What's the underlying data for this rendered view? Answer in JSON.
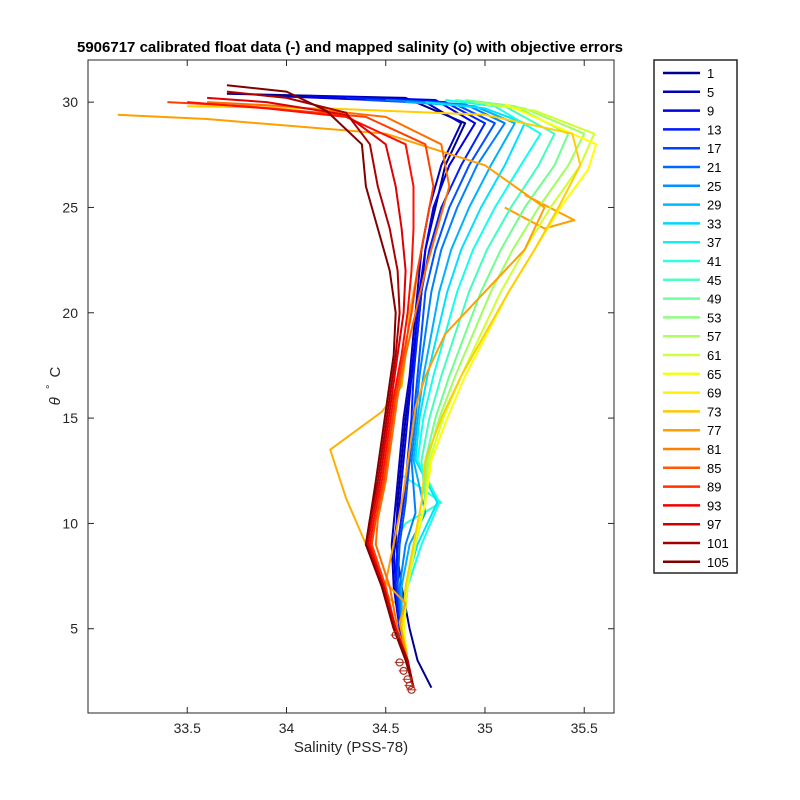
{
  "chart_data": {
    "type": "line",
    "title": "5906717 calibrated float data (-) and mapped salinity (o) with objective errors",
    "xlabel": "Salinity (PSS-78)",
    "ylabel_symbol": "θ",
    "ylabel_degree": "°",
    "ylabel_unit": "C",
    "xlim": [
      33.0,
      35.65
    ],
    "ylim": [
      1.0,
      32.0
    ],
    "xticks": [
      33.5,
      34,
      34.5,
      35,
      35.5
    ],
    "xtick_labels": [
      "33.5",
      "34",
      "34.5",
      "35",
      "35.5"
    ],
    "yticks": [
      5,
      10,
      15,
      20,
      25,
      30
    ],
    "ytick_labels": [
      "5",
      "10",
      "15",
      "20",
      "25",
      "30"
    ],
    "grid": false,
    "legend_position": "outside-right",
    "colormap": "jet",
    "series": [
      {
        "name": "1",
        "color": "#00008F",
        "x": [
          34.73,
          34.66,
          34.62,
          34.58,
          34.55,
          34.56,
          34.58,
          34.6,
          34.63,
          34.66,
          34.68,
          34.7,
          34.75,
          34.8,
          34.9,
          34.6,
          33.7
        ],
        "y": [
          2.2,
          3.5,
          5.0,
          7.0,
          9.0,
          11.0,
          13.0,
          15.0,
          17.0,
          19.0,
          21.0,
          23.0,
          25.0,
          27.0,
          29.0,
          30.2,
          30.4
        ]
      },
      {
        "name": "5",
        "color": "#0000BF",
        "x": [
          34.64,
          34.61,
          34.57,
          34.54,
          34.53,
          34.55,
          34.57,
          34.59,
          34.62,
          34.64,
          34.66,
          34.68,
          34.72,
          34.78,
          34.88,
          34.7,
          33.9
        ],
        "y": [
          2.2,
          3.5,
          5.0,
          7.0,
          9.0,
          11.0,
          13.0,
          15.0,
          17.0,
          19.0,
          21.0,
          23.0,
          25.0,
          27.0,
          29.0,
          30.0,
          30.3
        ]
      },
      {
        "name": "9",
        "color": "#0000EF",
        "x": [
          34.64,
          34.61,
          34.57,
          34.55,
          34.54,
          34.57,
          34.59,
          34.61,
          34.63,
          34.65,
          34.67,
          34.7,
          34.74,
          34.82,
          34.95,
          34.75,
          34.1
        ],
        "y": [
          2.2,
          3.5,
          5.0,
          7.0,
          9.0,
          11.0,
          13.0,
          15.0,
          17.0,
          19.0,
          21.0,
          23.0,
          25.0,
          27.0,
          29.0,
          30.1,
          30.3
        ]
      },
      {
        "name": "13",
        "color": "#0020FF",
        "x": [
          34.64,
          34.61,
          34.57,
          34.55,
          34.56,
          34.59,
          34.61,
          34.63,
          34.64,
          34.66,
          34.68,
          34.72,
          34.78,
          34.88,
          35.0,
          34.8,
          34.3
        ],
        "y": [
          2.2,
          3.5,
          5.0,
          7.0,
          9.0,
          11.0,
          13.0,
          15.0,
          17.0,
          19.0,
          21.0,
          23.0,
          25.0,
          27.0,
          29.0,
          30.0,
          30.2
        ]
      },
      {
        "name": "17",
        "color": "#0050FF",
        "x": [
          34.64,
          34.61,
          34.58,
          34.56,
          34.57,
          34.6,
          34.62,
          34.64,
          34.66,
          34.68,
          34.7,
          34.75,
          34.82,
          34.92,
          35.05,
          34.85,
          34.4
        ],
        "y": [
          2.2,
          3.5,
          5.0,
          7.0,
          9.0,
          11.0,
          13.0,
          15.0,
          17.0,
          19.0,
          21.0,
          23.0,
          25.0,
          27.0,
          29.0,
          29.9,
          30.1
        ]
      },
      {
        "name": "21",
        "color": "#0080FF",
        "x": [
          34.64,
          34.61,
          34.58,
          34.57,
          34.6,
          34.65,
          34.63,
          34.65,
          34.67,
          34.7,
          34.73,
          34.78,
          34.86,
          34.96,
          35.1,
          34.9,
          34.5
        ],
        "y": [
          2.2,
          3.5,
          5.0,
          7.0,
          9.0,
          10.5,
          13.0,
          15.0,
          17.0,
          19.0,
          21.0,
          23.0,
          25.0,
          27.0,
          29.0,
          29.9,
          30.1
        ]
      },
      {
        "name": "25",
        "color": "#00B0FF",
        "x": [
          34.64,
          34.61,
          34.58,
          34.58,
          34.62,
          34.7,
          34.64,
          34.66,
          34.69,
          34.73,
          34.77,
          34.83,
          34.92,
          35.03,
          35.15,
          34.95,
          34.6
        ],
        "y": [
          2.2,
          3.5,
          5.0,
          7.0,
          9.0,
          10.5,
          13.0,
          15.0,
          17.0,
          19.0,
          21.0,
          23.0,
          25.0,
          27.0,
          29.0,
          29.8,
          30.0
        ]
      },
      {
        "name": "29",
        "color": "#00E0FF",
        "x": [
          34.64,
          34.61,
          34.59,
          34.6,
          34.66,
          34.76,
          34.65,
          34.67,
          34.71,
          34.76,
          34.81,
          34.88,
          34.98,
          35.1,
          35.2,
          35.0,
          34.7
        ],
        "y": [
          2.2,
          3.5,
          5.0,
          7.0,
          9.0,
          11.0,
          13.0,
          15.0,
          17.0,
          19.0,
          21.0,
          23.0,
          25.0,
          27.0,
          29.0,
          29.7,
          30.0
        ]
      },
      {
        "name": "33",
        "color": "#10FFEF",
        "x": [
          34.64,
          34.61,
          34.59,
          34.61,
          34.68,
          34.77,
          34.66,
          34.69,
          34.74,
          34.8,
          34.86,
          34.94,
          35.05,
          35.18,
          35.28,
          35.05,
          34.8
        ],
        "y": [
          2.2,
          3.5,
          5.0,
          7.0,
          9.0,
          11.0,
          13.0,
          15.0,
          17.0,
          19.0,
          21.0,
          23.0,
          25.0,
          27.0,
          28.5,
          29.8,
          30.1
        ]
      },
      {
        "name": "37",
        "color": "#40FFBF",
        "x": [
          34.64,
          34.61,
          34.59,
          34.61,
          34.65,
          34.7,
          34.68,
          34.72,
          34.78,
          34.85,
          34.92,
          35.01,
          35.13,
          35.27,
          35.35,
          35.1,
          34.85
        ],
        "y": [
          2.2,
          3.5,
          5.0,
          7.0,
          9.0,
          11.0,
          13.0,
          15.0,
          17.0,
          19.0,
          21.0,
          23.0,
          25.0,
          27.0,
          28.5,
          29.8,
          30.1
        ]
      },
      {
        "name": "41",
        "color": "#70FF8F",
        "x": [
          34.64,
          34.61,
          34.59,
          34.61,
          34.65,
          34.7,
          34.7,
          34.75,
          34.82,
          34.9,
          34.98,
          35.08,
          35.2,
          35.35,
          35.42,
          35.15,
          34.9
        ],
        "y": [
          2.2,
          3.5,
          5.0,
          7.0,
          9.0,
          11.0,
          13.0,
          15.0,
          17.0,
          19.0,
          21.0,
          23.0,
          25.0,
          27.0,
          28.5,
          29.8,
          30.1
        ]
      },
      {
        "name": "45",
        "color": "#A0FF5F",
        "x": [
          34.64,
          34.61,
          34.59,
          34.61,
          34.65,
          34.7,
          34.71,
          34.77,
          34.85,
          34.94,
          35.03,
          35.14,
          35.27,
          35.42,
          35.5,
          35.2,
          34.95
        ],
        "y": [
          2.2,
          3.5,
          5.0,
          7.0,
          9.0,
          11.0,
          13.0,
          15.0,
          17.0,
          19.0,
          21.0,
          23.0,
          25.0,
          27.0,
          28.5,
          29.7,
          30.0
        ]
      },
      {
        "name": "49",
        "color": "#D0FF2F",
        "x": [
          34.64,
          34.61,
          34.59,
          34.61,
          34.65,
          34.7,
          34.72,
          34.79,
          34.88,
          34.98,
          35.08,
          35.2,
          35.33,
          35.48,
          35.55,
          35.25,
          35.0
        ],
        "y": [
          2.2,
          3.5,
          5.0,
          7.0,
          9.0,
          11.0,
          13.0,
          15.0,
          17.0,
          19.0,
          21.0,
          23.0,
          25.0,
          27.0,
          28.5,
          29.6,
          29.9
        ]
      },
      {
        "name": "53",
        "color": "#FFFF00",
        "x": [
          34.64,
          34.61,
          34.59,
          34.6,
          34.64,
          34.7,
          34.73,
          34.81,
          34.9,
          35.01,
          35.12,
          35.25,
          35.38,
          35.52,
          35.56,
          35.2,
          35.1
        ],
        "y": [
          2.2,
          3.5,
          5.0,
          7.0,
          9.0,
          11.0,
          13.0,
          15.0,
          17.0,
          19.0,
          21.0,
          23.0,
          25.0,
          26.8,
          28.0,
          29.5,
          29.9
        ]
      },
      {
        "name": "57",
        "color": "#FFCF00",
        "x": [
          34.64,
          34.61,
          34.58,
          34.6,
          34.64,
          34.68,
          34.7,
          34.78,
          34.88,
          35.0,
          35.12,
          35.25,
          35.37,
          35.48,
          35.44,
          35.0,
          34.2,
          33.5
        ],
        "y": [
          2.2,
          3.5,
          5.0,
          7.0,
          9.0,
          11.0,
          13.0,
          15.0,
          17.0,
          19.0,
          21.0,
          23.0,
          25.0,
          27.0,
          28.5,
          29.4,
          29.7,
          29.8
        ]
      },
      {
        "name": "61",
        "color": "#FF9F00",
        "x": [
          34.64,
          34.61,
          34.57,
          34.6,
          34.5,
          34.55,
          34.59,
          34.62,
          34.65,
          34.7,
          34.8,
          35.0,
          35.2,
          35.3,
          35.0,
          34.5,
          33.6,
          33.15
        ],
        "y": [
          2.2,
          3.5,
          5.3,
          6.2,
          7.2,
          9.5,
          11.5,
          13.5,
          15.5,
          17.0,
          19.0,
          21.0,
          23.0,
          25.0,
          27.0,
          28.5,
          29.2,
          29.4
        ]
      },
      {
        "name": "65",
        "color": "#FF6F00",
        "x": [
          34.64,
          34.61,
          34.56,
          34.52,
          34.45,
          34.46,
          34.5,
          34.53,
          34.56,
          34.6,
          34.65,
          34.7,
          34.76,
          34.82,
          34.78,
          34.5,
          34.0,
          33.6
        ],
        "y": [
          2.2,
          3.5,
          5.0,
          7.0,
          9.0,
          10.2,
          12.0,
          14.0,
          16.0,
          18.0,
          20.0,
          22.0,
          24.0,
          26.0,
          28.0,
          29.3,
          29.8,
          30.0
        ]
      },
      {
        "name": "69",
        "color": "#FF3F00",
        "x": [
          34.64,
          34.61,
          34.55,
          34.5,
          34.43,
          34.45,
          34.49,
          34.52,
          34.55,
          34.59,
          34.63,
          34.66,
          34.7,
          34.74,
          34.7,
          34.4,
          33.8,
          33.4
        ],
        "y": [
          2.2,
          3.5,
          5.0,
          7.0,
          9.0,
          10.2,
          12.0,
          14.0,
          16.0,
          18.0,
          20.0,
          22.0,
          24.0,
          26.0,
          28.0,
          29.3,
          29.8,
          30.0
        ]
      },
      {
        "name": "73",
        "color": "#FF0F00",
        "x": [
          34.64,
          34.61,
          34.55,
          34.49,
          34.42,
          34.44,
          34.48,
          34.51,
          34.54,
          34.58,
          34.61,
          34.63,
          34.64,
          34.64,
          34.6,
          34.3,
          33.9,
          33.5
        ],
        "y": [
          2.2,
          3.5,
          5.0,
          7.0,
          9.0,
          10.2,
          12.0,
          14.0,
          16.0,
          18.0,
          20.0,
          22.0,
          24.0,
          26.0,
          28.0,
          29.3,
          29.7,
          30.0
        ]
      },
      {
        "name": "77",
        "color": "#DF0000",
        "x": [
          34.64,
          34.61,
          34.55,
          34.49,
          34.41,
          34.43,
          34.47,
          34.5,
          34.53,
          34.56,
          34.59,
          34.6,
          34.58,
          34.55,
          34.5,
          34.3,
          33.9,
          33.6
        ],
        "y": [
          2.2,
          3.5,
          5.0,
          7.0,
          9.0,
          10.2,
          12.0,
          14.0,
          16.0,
          18.0,
          20.0,
          22.0,
          24.0,
          26.0,
          28.0,
          29.4,
          30.0,
          30.2
        ]
      },
      {
        "name": "81",
        "color": "#AF0000",
        "x": [
          34.64,
          34.61,
          34.54,
          34.48,
          34.4,
          34.42,
          34.46,
          34.49,
          34.52,
          34.55,
          34.57,
          34.56,
          34.52,
          34.46,
          34.42,
          34.3,
          34.0,
          33.7
        ],
        "y": [
          2.2,
          3.5,
          5.0,
          7.0,
          9.0,
          10.2,
          12.0,
          14.0,
          16.0,
          18.0,
          20.0,
          22.0,
          24.0,
          26.0,
          28.0,
          29.5,
          30.2,
          30.5
        ]
      },
      {
        "name": "85",
        "color": "#800000",
        "x": [
          34.64,
          34.6,
          34.54,
          34.48,
          34.4,
          34.42,
          34.45,
          34.48,
          34.51,
          34.54,
          34.55,
          34.52,
          34.46,
          34.4,
          34.38,
          34.2,
          34.0,
          33.7
        ],
        "y": [
          2.2,
          3.5,
          5.0,
          7.0,
          9.0,
          10.2,
          12.0,
          14.0,
          16.0,
          18.0,
          20.0,
          22.0,
          24.0,
          26.0,
          28.0,
          29.6,
          30.5,
          30.8
        ]
      }
    ],
    "extra_lines": [
      {
        "color": "#FFB000",
        "x": [
          34.59,
          34.52,
          34.3,
          34.22,
          34.48,
          34.58,
          34.6,
          34.62,
          34.66,
          34.7
        ],
        "y": [
          6.0,
          6.4,
          11.2,
          13.5,
          15.3,
          16.5,
          18.0,
          20.0,
          22.0,
          24.0
        ]
      },
      {
        "color": "#30FFCF",
        "x": [
          34.55,
          34.6,
          34.78,
          34.66,
          34.58
        ],
        "y": [
          9.2,
          10.0,
          11.0,
          11.8,
          12.3
        ]
      },
      {
        "color": "#FFA000",
        "x": [
          35.1,
          35.3,
          35.45,
          35.2
        ],
        "y": [
          25.0,
          24.0,
          24.4,
          25.6
        ]
      }
    ],
    "legend_entries": [
      {
        "label": "1",
        "color": "#000090"
      },
      {
        "label": "5",
        "color": "#0000B0"
      },
      {
        "label": "9",
        "color": "#0000D8"
      },
      {
        "label": "13",
        "color": "#0018FF"
      },
      {
        "label": "17",
        "color": "#0040FF"
      },
      {
        "label": "21",
        "color": "#0068FF"
      },
      {
        "label": "25",
        "color": "#0090FF"
      },
      {
        "label": "29",
        "color": "#00B8FF"
      },
      {
        "label": "33",
        "color": "#00D8FF"
      },
      {
        "label": "37",
        "color": "#10F0F0"
      },
      {
        "label": "41",
        "color": "#30FFE0"
      },
      {
        "label": "45",
        "color": "#50FFC0"
      },
      {
        "label": "49",
        "color": "#70FFA0"
      },
      {
        "label": "53",
        "color": "#90FF80"
      },
      {
        "label": "57",
        "color": "#B0FF60"
      },
      {
        "label": "61",
        "color": "#D0FF40"
      },
      {
        "label": "65",
        "color": "#F0FF20"
      },
      {
        "label": "69",
        "color": "#FFF000"
      },
      {
        "label": "73",
        "color": "#FFC800"
      },
      {
        "label": "77",
        "color": "#FFA000"
      },
      {
        "label": "81",
        "color": "#FF8000"
      },
      {
        "label": "85",
        "color": "#FF5800"
      },
      {
        "label": "89",
        "color": "#FF3000"
      },
      {
        "label": "93",
        "color": "#F00000"
      },
      {
        "label": "97",
        "color": "#C80000"
      },
      {
        "label": "101",
        "color": "#A00000"
      },
      {
        "label": "105",
        "color": "#800000"
      }
    ],
    "mapped_points": [
      {
        "x": 34.55,
        "y": 4.7
      },
      {
        "x": 34.57,
        "y": 3.4
      },
      {
        "x": 34.59,
        "y": 3.0
      },
      {
        "x": 34.61,
        "y": 2.6
      },
      {
        "x": 34.62,
        "y": 2.3
      },
      {
        "x": 34.63,
        "y": 2.1
      }
    ]
  }
}
